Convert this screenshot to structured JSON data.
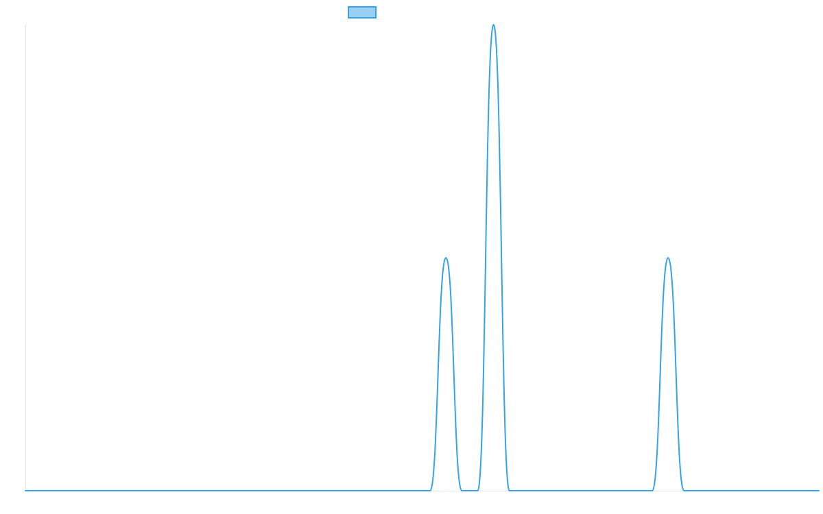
{
  "chart_data": {
    "type": "line",
    "title": "",
    "xlabel": "",
    "ylabel": "",
    "xlim": [
      0,
      100
    ],
    "ylim": [
      0,
      2
    ],
    "grid": false,
    "legend": {
      "placement": "top-center",
      "entries": [
        {
          "label": "",
          "color": "#36a2eb",
          "fill": "rgba(54,162,235,0.5)"
        }
      ]
    },
    "series": [
      {
        "color": "#36a2eb",
        "x": [
          0,
          51,
          53,
          55,
          57,
          59,
          61,
          63,
          65,
          79,
          81,
          83,
          85,
          100
        ],
        "y": [
          0,
          0,
          1,
          0,
          0,
          2,
          0,
          0,
          0,
          0,
          1,
          0,
          0,
          0
        ]
      }
    ]
  }
}
